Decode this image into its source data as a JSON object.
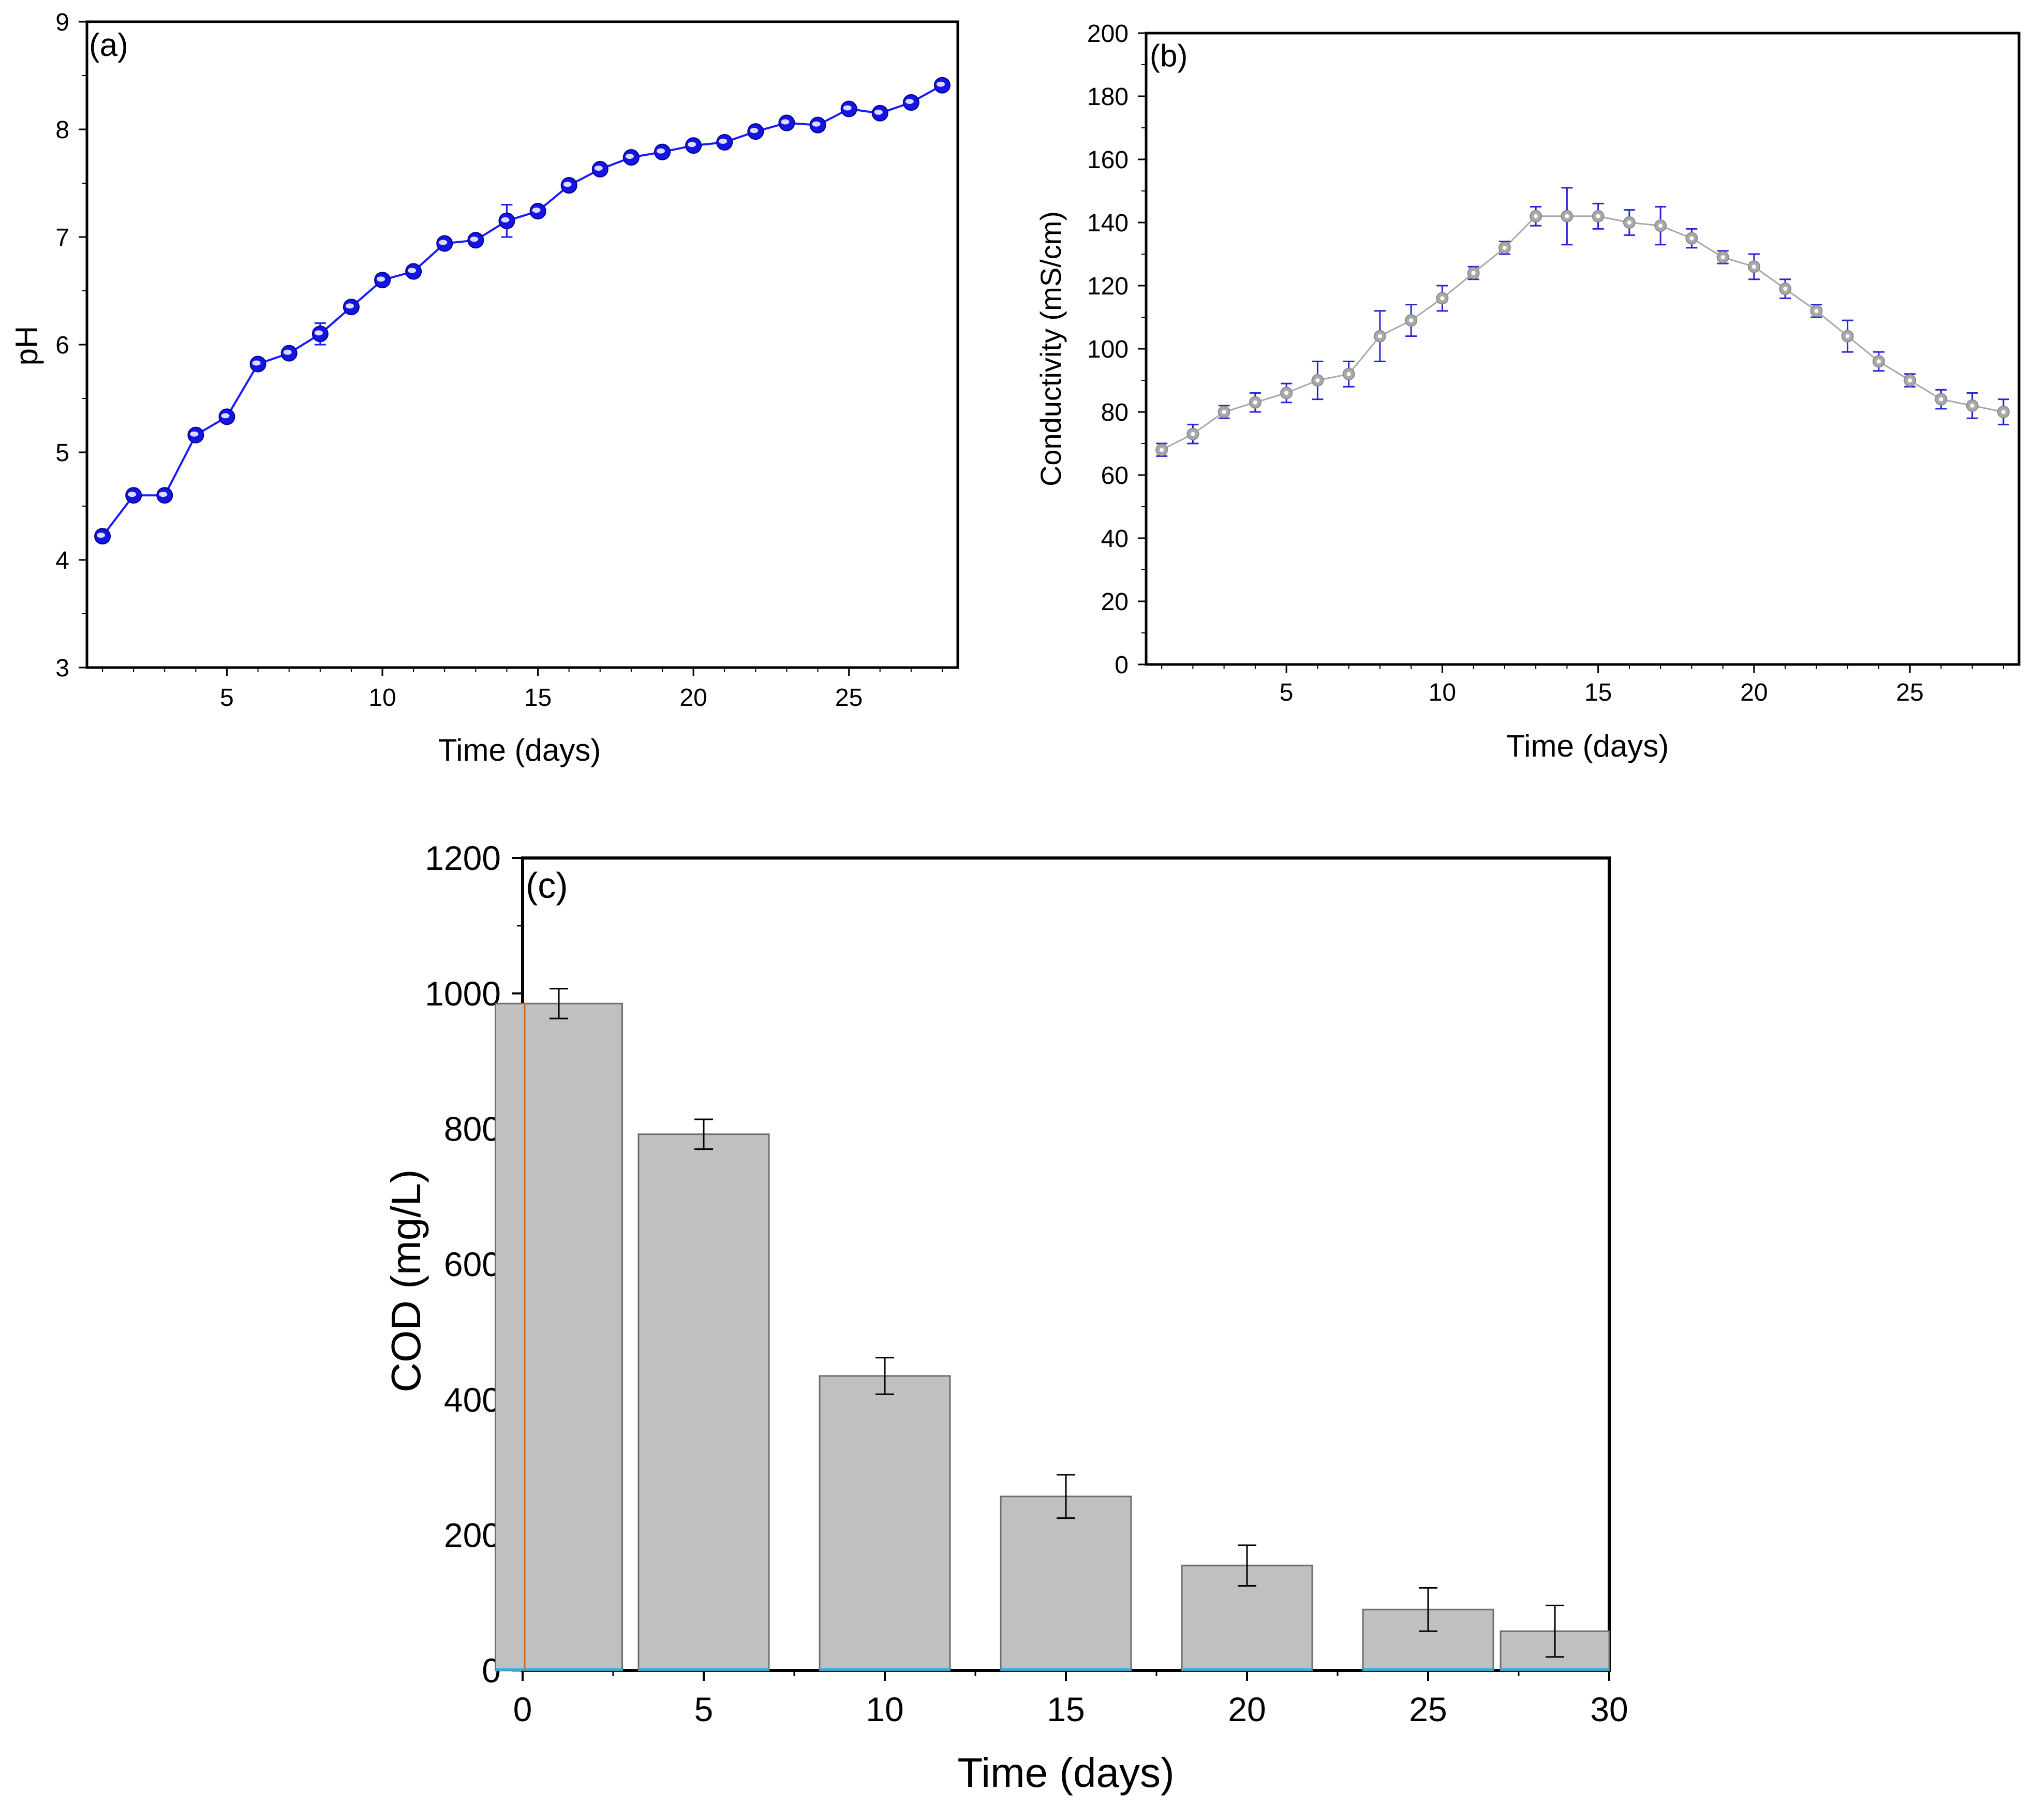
{
  "chart_data": [
    {
      "id": "a",
      "type": "line",
      "panel_label": "(a)",
      "xlabel": "Time (days)",
      "ylabel": "pH",
      "xlim": [
        0.5,
        28.5
      ],
      "ylim": [
        3,
        9
      ],
      "xticks": [
        5,
        10,
        15,
        20,
        25
      ],
      "yticks": [
        3,
        4,
        5,
        6,
        7,
        8,
        9
      ],
      "colors": {
        "line": "#1a1aff",
        "marker": "#1414e6",
        "error": "#1a1aff"
      },
      "x": [
        1,
        2,
        3,
        4,
        5,
        6,
        7,
        8,
        9,
        10,
        11,
        12,
        13,
        14,
        15,
        16,
        17,
        18,
        19,
        20,
        21,
        22,
        23,
        24,
        25,
        26,
        27,
        28
      ],
      "y": [
        4.22,
        4.6,
        4.6,
        5.16,
        5.33,
        5.82,
        5.92,
        6.1,
        6.35,
        6.6,
        6.68,
        6.94,
        6.97,
        7.15,
        7.24,
        7.48,
        7.63,
        7.74,
        7.79,
        7.85,
        7.88,
        7.98,
        8.06,
        8.04,
        8.19,
        8.15,
        8.25,
        8.41
      ],
      "yerr": [
        0.03,
        0.03,
        0.03,
        0.03,
        0.05,
        0.03,
        0.03,
        0.1,
        0.03,
        0.03,
        0.03,
        0.03,
        0.03,
        0.15,
        0.05,
        0.03,
        0.03,
        0.03,
        0.03,
        0.03,
        0.03,
        0.03,
        0.03,
        0.03,
        0.03,
        0.03,
        0.03,
        0.03
      ]
    },
    {
      "id": "b",
      "type": "line",
      "panel_label": "(b)",
      "xlabel": "Time (days)",
      "ylabel": "Conductivity (mS/cm)",
      "xlim": [
        0.5,
        28.5
      ],
      "ylim": [
        0,
        200
      ],
      "xticks": [
        5,
        10,
        15,
        20,
        25
      ],
      "yticks": [
        0,
        20,
        40,
        60,
        80,
        100,
        120,
        140,
        160,
        180,
        200
      ],
      "colors": {
        "line": "#a8a8a8",
        "marker": "#a9a9a9",
        "error": "#2424d8"
      },
      "x": [
        1,
        2,
        3,
        4,
        5,
        6,
        7,
        8,
        9,
        10,
        11,
        12,
        13,
        14,
        15,
        16,
        17,
        18,
        19,
        20,
        21,
        22,
        23,
        24,
        25,
        26,
        27,
        28
      ],
      "y": [
        68,
        73,
        80,
        83,
        86,
        90,
        92,
        104,
        109,
        116,
        124,
        132,
        142,
        142,
        142,
        140,
        139,
        135,
        129,
        126,
        119,
        112,
        104,
        96,
        90,
        84,
        82,
        80
      ],
      "yerr": [
        2,
        3,
        2,
        3,
        3,
        6,
        4,
        8,
        5,
        4,
        2,
        2,
        3,
        9,
        4,
        4,
        6,
        3,
        2,
        4,
        3,
        2,
        5,
        3,
        2,
        3,
        4,
        4
      ]
    },
    {
      "id": "c",
      "type": "bar",
      "panel_label": "(c)",
      "xlabel": "Time (days)",
      "ylabel": "COD (mg/L)",
      "xlim": [
        0,
        30
      ],
      "ylim": [
        0,
        1200
      ],
      "xticks": [
        0,
        5,
        10,
        15,
        20,
        25,
        30
      ],
      "xtick_labels": [
        "0",
        "5",
        "10",
        "15",
        "20",
        "25",
        "30"
      ],
      "yticks": [
        0,
        200,
        400,
        600,
        800,
        1000,
        1200
      ],
      "colors": {
        "bar": "#c0c0c0",
        "bar_edge": "#6e6e6e",
        "error": "#000000",
        "baseline": "#33b3e0"
      },
      "x": [
        1,
        5,
        10,
        15,
        20,
        25,
        28.5
      ],
      "bar_width": [
        3.5,
        3.6,
        3.6,
        3.6,
        3.6,
        3.6,
        3.0
      ],
      "values": [
        985,
        792,
        435,
        257,
        155,
        90,
        58
      ],
      "yerr": [
        22,
        22,
        27,
        32,
        30,
        32,
        38
      ]
    }
  ]
}
